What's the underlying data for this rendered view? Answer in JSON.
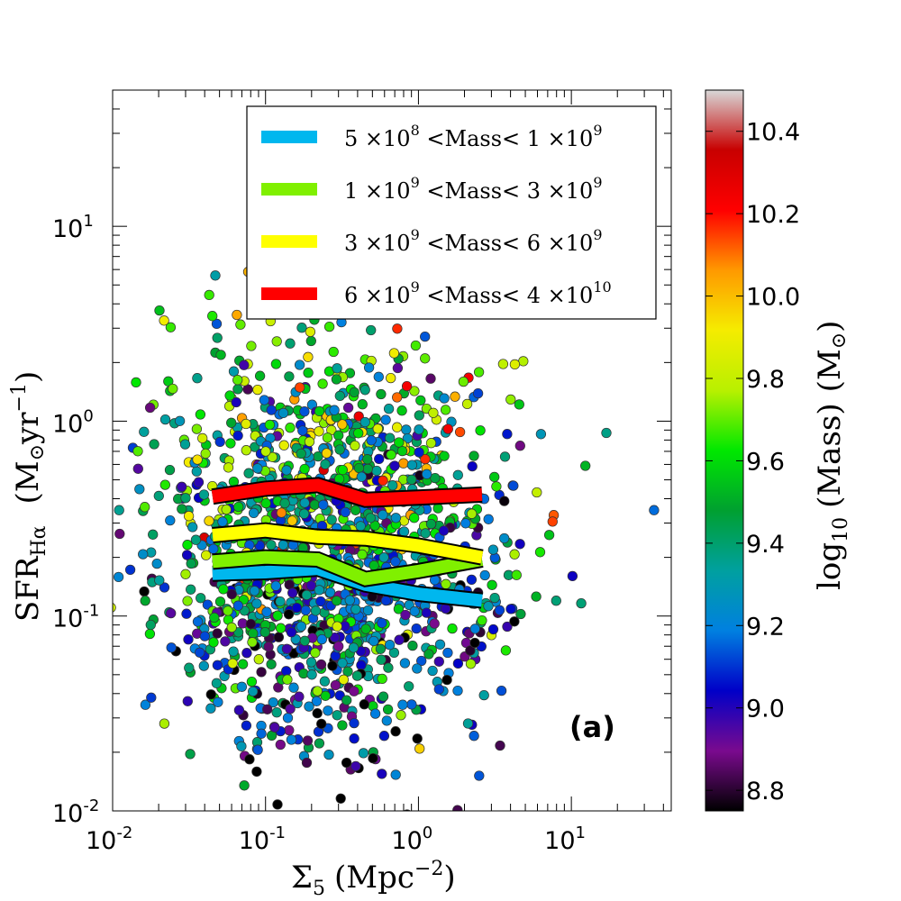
{
  "chart_data": {
    "type": "scatter",
    "panel_label": "(a)",
    "x_axis": {
      "symbol": "Σ",
      "subscript": "5",
      "unit": "(Mpc",
      "unit_exp": "−2",
      "unit_close": ")",
      "scale": "log",
      "range": [
        0.01,
        45
      ],
      "ticks": [
        {
          "value": 0.01,
          "base": "10",
          "exp": "-2"
        },
        {
          "value": 0.1,
          "base": "10",
          "exp": "-1"
        },
        {
          "value": 1,
          "base": "10",
          "exp": "0"
        },
        {
          "value": 10,
          "base": "10",
          "exp": "1"
        }
      ]
    },
    "y_axis": {
      "symbol": "SFR",
      "subscript": "Hα",
      "unit_open": "(M",
      "unit_sun": "⊙",
      "unit_mid": "yr",
      "unit_exp": "−1",
      "unit_close": ")",
      "scale": "log",
      "range": [
        0.01,
        50
      ],
      "ticks": [
        {
          "value": 0.01,
          "base": "10",
          "exp": "-2"
        },
        {
          "value": 0.1,
          "base": "10",
          "exp": "-1"
        },
        {
          "value": 1,
          "base": "10",
          "exp": "0"
        },
        {
          "value": 10,
          "base": "10",
          "exp": "1"
        }
      ]
    },
    "colorbar": {
      "label_prefix": "log",
      "label_sub": "10",
      "label_mid": "(Mass)",
      "label_unit": "(M",
      "label_sun": "⊙",
      "label_close": ")",
      "range": [
        8.75,
        10.5
      ],
      "ticks": [
        "8.8",
        "9.0",
        "9.2",
        "9.4",
        "9.6",
        "9.8",
        "10.0",
        "10.2",
        "10.4"
      ],
      "tick_values": [
        8.8,
        9.0,
        9.2,
        9.4,
        9.6,
        9.8,
        10.0,
        10.2,
        10.4
      ],
      "colormap": [
        "#000000",
        "#7a0a8e",
        "#0000c8",
        "#0080e0",
        "#00a0a0",
        "#00a030",
        "#00e800",
        "#b8f000",
        "#f5ec00",
        "#ff9900",
        "#ff0000",
        "#c80000",
        "#d8d8d8"
      ]
    },
    "series": [
      {
        "name": "5 ×10^8 <Mass <1 ×10^9",
        "color": "#00b7ee",
        "x": [
          0.045,
          0.1,
          0.22,
          0.45,
          1.0,
          2.6
        ],
        "y": [
          0.165,
          0.168,
          0.175,
          0.145,
          0.13,
          0.12
        ]
      },
      {
        "name": "1 ×10^9 <Mass <3 ×10^9",
        "color": "#80f000",
        "x": [
          0.045,
          0.1,
          0.22,
          0.45,
          1.0,
          2.6
        ],
        "y": [
          0.19,
          0.2,
          0.195,
          0.155,
          0.17,
          0.195
        ]
      },
      {
        "name": "3 ×10^9 <Mass <6 ×10^9",
        "color": "#ffff00",
        "x": [
          0.045,
          0.1,
          0.22,
          0.45,
          1.0,
          2.6
        ],
        "y": [
          0.26,
          0.275,
          0.255,
          0.25,
          0.23,
          0.2
        ]
      },
      {
        "name": "6 ×10^9 <Mass <4 ×10^10",
        "color": "#ff0000",
        "x": [
          0.045,
          0.1,
          0.22,
          0.45,
          1.0,
          2.6
        ],
        "y": [
          0.41,
          0.45,
          0.47,
          0.395,
          0.405,
          0.42
        ]
      }
    ],
    "legend": {
      "placement": "top-right",
      "entries": [
        {
          "a": "5",
          "a_exp": "8",
          "b": "1",
          "b_exp": "9"
        },
        {
          "a": "1",
          "a_exp": "9",
          "b": "3",
          "b_exp": "9"
        },
        {
          "a": "3",
          "a_exp": "9",
          "b": "6",
          "b_exp": "9"
        },
        {
          "a": "6",
          "a_exp": "9",
          "b": "4",
          "b_exp": "10"
        }
      ],
      "times": "×10",
      "mass_text": "<Mass<"
    },
    "scatter_points": {
      "count": 1600,
      "description_x_log_center": -0.6,
      "x_log_spread": 0.55,
      "y_log_center": -0.65,
      "y_log_spread": 0.5,
      "mass_range": [
        8.75,
        10.5
      ],
      "seed": 7
    }
  }
}
